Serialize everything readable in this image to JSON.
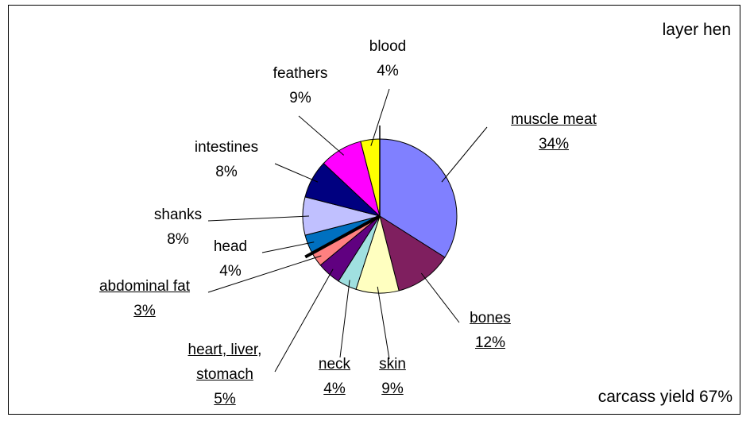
{
  "chart_data": {
    "type": "pie",
    "title": "layer hen",
    "annotation": "carcass yield 67%",
    "categories": [
      "muscle meat",
      "bones",
      "skin",
      "neck",
      "heart, liver, stomach",
      "abdominal fat",
      "head",
      "shanks",
      "intestines",
      "feathers",
      "blood"
    ],
    "values": [
      34,
      12,
      9,
      4,
      5,
      3,
      4,
      8,
      8,
      9,
      4
    ],
    "value_labels": [
      "34%",
      "12%",
      "9%",
      "4%",
      "5%",
      "3%",
      "4%",
      "8%",
      "8%",
      "9%",
      "4%"
    ],
    "colors": [
      "#8080ff",
      "#7f1f5f",
      "#ffffc0",
      "#a0e0e0",
      "#600080",
      "#ff8080",
      "#0070c0",
      "#c0c0ff",
      "#000080",
      "#ff00ff",
      "#ffff00"
    ],
    "underlined": [
      true,
      true,
      true,
      true,
      true,
      true,
      false,
      false,
      false,
      false,
      false
    ]
  }
}
